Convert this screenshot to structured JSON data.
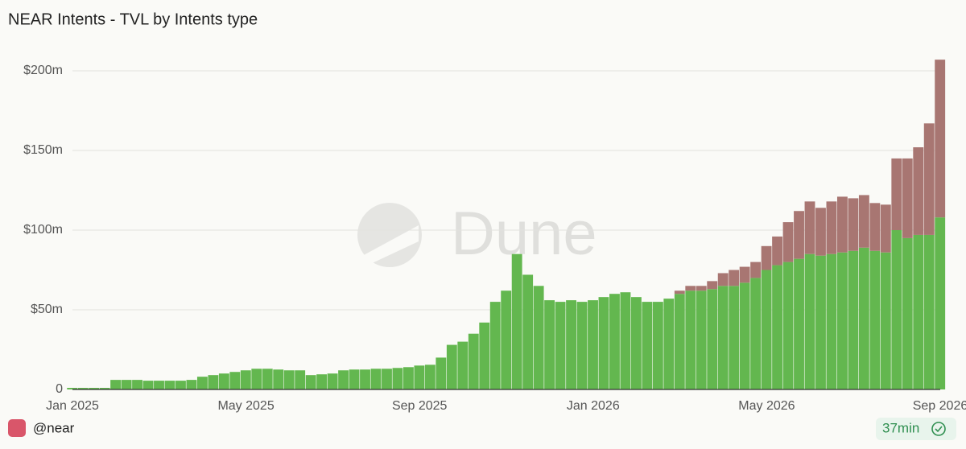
{
  "chart_data": {
    "type": "stacked_bar",
    "title": "NEAR Intents - TVL by Intents type",
    "categories": [
      "Jan 2025",
      null,
      null,
      null,
      null,
      null,
      null,
      null,
      null,
      null,
      null,
      null,
      null,
      null,
      null,
      null,
      "May 2025",
      null,
      null,
      null,
      null,
      null,
      null,
      null,
      null,
      null,
      null,
      null,
      null,
      null,
      null,
      null,
      "Sep 2025",
      null,
      null,
      null,
      null,
      null,
      null,
      null,
      null,
      null,
      null,
      null,
      null,
      null,
      null,
      null,
      "Jan 2026",
      null,
      null,
      null,
      null,
      null,
      null,
      null,
      null,
      null,
      null,
      null,
      null,
      null,
      null,
      null,
      "May 2026",
      null,
      null,
      null,
      null,
      null,
      null,
      null,
      null,
      null,
      null,
      null,
      null,
      null,
      null,
      null,
      "Sep 2026"
    ],
    "series": [
      {
        "color": "#63b74f",
        "values": [
          1,
          1,
          1,
          1,
          6,
          6,
          6,
          5.5,
          5.5,
          5.5,
          5.5,
          6,
          8,
          9,
          10,
          11,
          12,
          13,
          13,
          12.5,
          12,
          12,
          9,
          9.5,
          10,
          12,
          12.5,
          12.5,
          13,
          13,
          13.5,
          14,
          15,
          15.5,
          20,
          28,
          30,
          35,
          42,
          55,
          62,
          85,
          72,
          65,
          56,
          55,
          56,
          55,
          56,
          58,
          60,
          61,
          58,
          55,
          55,
          57,
          60,
          62,
          62,
          63,
          65,
          65,
          67,
          70,
          75,
          78,
          80,
          82,
          85,
          84,
          85,
          86,
          87,
          89,
          87,
          86,
          100,
          95,
          97,
          97,
          108
        ]
      },
      {
        "color": "#a87672",
        "values": [
          0,
          0,
          0,
          0,
          0,
          0,
          0,
          0,
          0,
          0,
          0,
          0,
          0,
          0,
          0,
          0,
          0,
          0,
          0,
          0,
          0,
          0,
          0,
          0,
          0,
          0,
          0,
          0,
          0,
          0,
          0,
          0,
          0,
          0,
          0,
          0,
          0,
          0,
          0,
          0,
          0,
          0,
          0,
          0,
          0,
          0,
          0,
          0,
          0,
          0,
          0,
          0,
          0,
          0,
          0,
          0,
          2,
          3,
          3,
          5,
          8,
          10,
          10,
          10,
          15,
          18,
          25,
          30,
          33,
          30,
          33,
          35,
          33,
          33,
          30,
          30,
          45,
          50,
          55,
          70,
          99
        ]
      }
    ],
    "ylim": [
      0,
      210
    ],
    "yticks": [
      0,
      {
        "value": 50,
        "label": "$50m"
      },
      {
        "value": 100,
        "label": "$100m"
      },
      {
        "value": 150,
        "label": "$150m"
      },
      {
        "value": 200,
        "label": "$200m"
      }
    ],
    "grid": true
  },
  "watermark": "Dune",
  "footer": {
    "author": "@near",
    "age": "37min"
  }
}
